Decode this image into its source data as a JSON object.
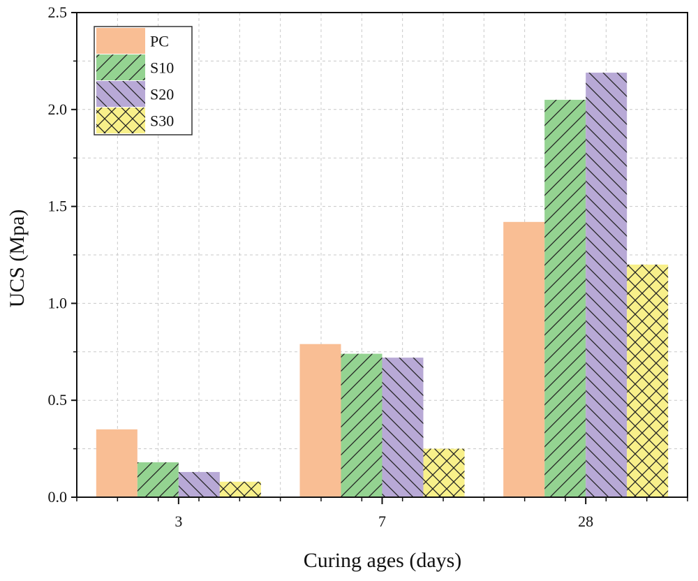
{
  "chart_data": {
    "type": "bar",
    "title": "",
    "xlabel": "Curing ages (days)",
    "ylabel": "UCS (Mpa)",
    "categories": [
      "3",
      "7",
      "28"
    ],
    "ylim": [
      0,
      2.5
    ],
    "yticks": [
      "0.0",
      "0.5",
      "1.0",
      "1.5",
      "2.0",
      "2.5"
    ],
    "grid": true,
    "legend_position": "top-left",
    "series": [
      {
        "name": "PC",
        "values": [
          0.35,
          0.79,
          1.42
        ],
        "color": "#F9BE94",
        "pattern": "none"
      },
      {
        "name": "S10",
        "values": [
          0.18,
          0.74,
          2.05
        ],
        "color": "#94D391",
        "pattern": "forward-diagonal"
      },
      {
        "name": "S20",
        "values": [
          0.13,
          0.72,
          2.19
        ],
        "color": "#B8A9D6",
        "pattern": "backward-diagonal"
      },
      {
        "name": "S30",
        "values": [
          0.08,
          0.25,
          1.2
        ],
        "color": "#F8F08A",
        "pattern": "crosshatch"
      }
    ]
  }
}
